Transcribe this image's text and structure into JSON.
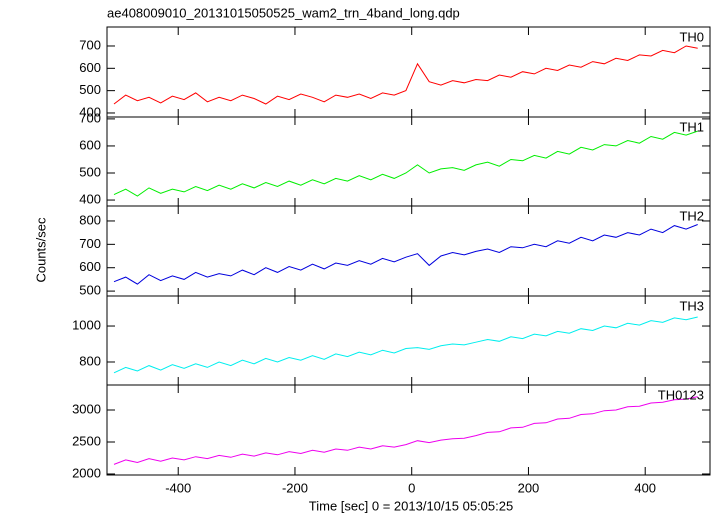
{
  "title": "ae408009010_20131015050525_wam2_trn_4band_long.qdp",
  "ylabel": "Counts/sec",
  "xlabel": "Time [sec] 0 = 2013/10/15 05:05:25",
  "chart_data": [
    {
      "type": "line",
      "xlim": [
        -522,
        511
      ],
      "xticks": [
        -400,
        -200,
        0,
        200,
        400
      ],
      "ylim": [
        382,
        785
      ],
      "yticks": [
        400,
        500,
        600,
        700
      ],
      "x": [
        -510,
        -490,
        -470,
        -450,
        -430,
        -410,
        -390,
        -370,
        -350,
        -330,
        -310,
        -290,
        -270,
        -250,
        -230,
        -210,
        -190,
        -170,
        -150,
        -130,
        -110,
        -90,
        -70,
        -50,
        -30,
        -10,
        10,
        30,
        50,
        70,
        90,
        110,
        130,
        150,
        170,
        190,
        210,
        230,
        250,
        270,
        290,
        310,
        330,
        350,
        370,
        390,
        410,
        430,
        450,
        470,
        490
      ],
      "series": [
        {
          "name": "TH0",
          "color": "#ff0000",
          "values": [
            440,
            480,
            455,
            470,
            445,
            475,
            460,
            490,
            450,
            470,
            455,
            480,
            465,
            440,
            475,
            460,
            485,
            470,
            450,
            480,
            470,
            485,
            465,
            490,
            480,
            500,
            620,
            540,
            525,
            545,
            535,
            550,
            545,
            570,
            560,
            585,
            575,
            600,
            590,
            615,
            605,
            630,
            620,
            645,
            635,
            660,
            655,
            680,
            670,
            700,
            690
          ]
        }
      ]
    },
    {
      "type": "line",
      "xlim": [
        -522,
        511
      ],
      "xticks": [
        -400,
        -200,
        0,
        200,
        400
      ],
      "ylim": [
        378,
        707
      ],
      "yticks": [
        400,
        500,
        600,
        700
      ],
      "x": [
        -510,
        -490,
        -470,
        -450,
        -430,
        -410,
        -390,
        -370,
        -350,
        -330,
        -310,
        -290,
        -270,
        -250,
        -230,
        -210,
        -190,
        -170,
        -150,
        -130,
        -110,
        -90,
        -70,
        -50,
        -30,
        -10,
        10,
        30,
        50,
        70,
        90,
        110,
        130,
        150,
        170,
        190,
        210,
        230,
        250,
        270,
        290,
        310,
        330,
        350,
        370,
        390,
        410,
        430,
        450,
        470,
        490
      ],
      "series": [
        {
          "name": "TH1",
          "color": "#00ee00",
          "values": [
            420,
            440,
            415,
            445,
            425,
            440,
            430,
            450,
            435,
            455,
            440,
            460,
            445,
            465,
            450,
            470,
            455,
            475,
            460,
            480,
            470,
            490,
            475,
            495,
            480,
            500,
            530,
            500,
            515,
            520,
            510,
            530,
            540,
            525,
            550,
            545,
            565,
            555,
            580,
            570,
            595,
            585,
            605,
            600,
            620,
            610,
            635,
            625,
            650,
            640,
            655
          ]
        }
      ]
    },
    {
      "type": "line",
      "xlim": [
        -522,
        511
      ],
      "xticks": [
        -400,
        -200,
        0,
        200,
        400
      ],
      "ylim": [
        479,
        864
      ],
      "yticks": [
        500,
        600,
        700,
        800
      ],
      "x": [
        -510,
        -490,
        -470,
        -450,
        -430,
        -410,
        -390,
        -370,
        -350,
        -330,
        -310,
        -290,
        -270,
        -250,
        -230,
        -210,
        -190,
        -170,
        -150,
        -130,
        -110,
        -90,
        -70,
        -50,
        -30,
        -10,
        10,
        30,
        50,
        70,
        90,
        110,
        130,
        150,
        170,
        190,
        210,
        230,
        250,
        270,
        290,
        310,
        330,
        350,
        370,
        390,
        410,
        430,
        450,
        470,
        490
      ],
      "series": [
        {
          "name": "TH2",
          "color": "#0000dd",
          "values": [
            540,
            560,
            530,
            570,
            545,
            565,
            550,
            580,
            560,
            575,
            565,
            590,
            570,
            600,
            580,
            605,
            590,
            615,
            595,
            620,
            610,
            630,
            615,
            640,
            625,
            645,
            660,
            610,
            650,
            665,
            655,
            670,
            680,
            665,
            690,
            685,
            700,
            690,
            715,
            705,
            730,
            715,
            740,
            730,
            750,
            740,
            765,
            750,
            780,
            765,
            785
          ]
        }
      ]
    },
    {
      "type": "line",
      "xlim": [
        -522,
        511
      ],
      "xticks": [
        -400,
        -200,
        0,
        200,
        400
      ],
      "ylim": [
        672,
        1167
      ],
      "yticks": [
        800,
        1000
      ],
      "x": [
        -510,
        -490,
        -470,
        -450,
        -430,
        -410,
        -390,
        -370,
        -350,
        -330,
        -310,
        -290,
        -270,
        -250,
        -230,
        -210,
        -190,
        -170,
        -150,
        -130,
        -110,
        -90,
        -70,
        -50,
        -30,
        -10,
        10,
        30,
        50,
        70,
        90,
        110,
        130,
        150,
        170,
        190,
        210,
        230,
        250,
        270,
        290,
        310,
        330,
        350,
        370,
        390,
        410,
        430,
        450,
        470,
        490
      ],
      "series": [
        {
          "name": "TH3",
          "color": "#00eeee",
          "values": [
            740,
            770,
            750,
            780,
            755,
            785,
            765,
            790,
            770,
            800,
            780,
            810,
            790,
            820,
            800,
            825,
            810,
            835,
            815,
            845,
            830,
            855,
            840,
            865,
            850,
            875,
            880,
            870,
            890,
            900,
            895,
            910,
            925,
            915,
            940,
            930,
            955,
            945,
            970,
            960,
            985,
            975,
            1000,
            990,
            1015,
            1005,
            1030,
            1020,
            1045,
            1035,
            1050
          ]
        }
      ]
    },
    {
      "type": "line",
      "xlim": [
        -522,
        511
      ],
      "xticks": [
        -400,
        -200,
        0,
        200,
        400
      ],
      "ylim": [
        1984,
        3391
      ],
      "yticks": [
        2000,
        2500,
        3000
      ],
      "x": [
        -510,
        -490,
        -470,
        -450,
        -430,
        -410,
        -390,
        -370,
        -350,
        -330,
        -310,
        -290,
        -270,
        -250,
        -230,
        -210,
        -190,
        -170,
        -150,
        -130,
        -110,
        -90,
        -70,
        -50,
        -30,
        -10,
        10,
        30,
        50,
        70,
        90,
        110,
        130,
        150,
        170,
        190,
        210,
        230,
        250,
        270,
        290,
        310,
        330,
        350,
        370,
        390,
        410,
        430,
        450,
        470,
        490
      ],
      "series": [
        {
          "name": "TH0123",
          "color": "#ee00ee",
          "values": [
            2150,
            2220,
            2180,
            2240,
            2200,
            2250,
            2220,
            2270,
            2240,
            2290,
            2260,
            2310,
            2280,
            2330,
            2300,
            2350,
            2320,
            2370,
            2340,
            2390,
            2370,
            2420,
            2390,
            2440,
            2420,
            2460,
            2520,
            2490,
            2530,
            2550,
            2560,
            2600,
            2650,
            2660,
            2720,
            2730,
            2790,
            2800,
            2860,
            2870,
            2930,
            2940,
            2990,
            3000,
            3050,
            3060,
            3110,
            3120,
            3160,
            3170,
            3210
          ]
        }
      ]
    }
  ]
}
